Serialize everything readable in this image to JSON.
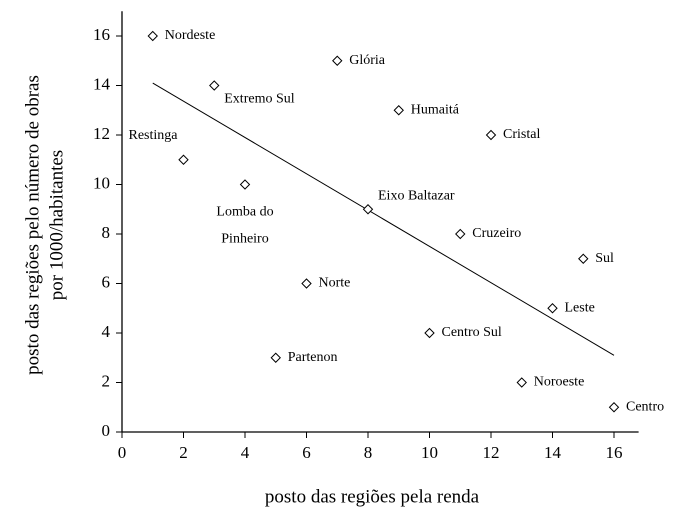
{
  "chart_data": {
    "type": "scatter",
    "xlabel": "posto das regiões pela renda",
    "ylabel": [
      "posto das regiões  pelo  número de obras",
      "por 1000/habitantes"
    ],
    "x": [
      1,
      7,
      3,
      9,
      12,
      2,
      4,
      8,
      11,
      15,
      6,
      14,
      10,
      5,
      13,
      16
    ],
    "values": [
      16,
      15,
      14,
      13,
      12,
      11,
      10,
      9,
      8,
      7,
      6,
      5,
      4,
      3,
      2,
      1
    ],
    "labels": [
      "Nordeste",
      "Glória",
      "Extremo Sul",
      "Humaitá",
      "Cristal",
      "Restinga",
      [
        "Lomba do",
        "Pinheiro"
      ],
      "Eixo Baltazar",
      "Cruzeiro",
      "Sul",
      "Norte",
      "Leste",
      "Centro Sul",
      "Partenon",
      "Noroeste",
      "Centro"
    ],
    "trendline": {
      "x": [
        1,
        16
      ],
      "y": [
        14.1,
        3.1
      ]
    },
    "xlim": [
      0,
      16.8
    ],
    "ylim": [
      0,
      17
    ],
    "xticks": [
      0,
      2,
      4,
      6,
      8,
      10,
      12,
      14,
      16
    ],
    "yticks": [
      0,
      2,
      4,
      6,
      8,
      10,
      12,
      14,
      16
    ],
    "color": "#000000"
  }
}
